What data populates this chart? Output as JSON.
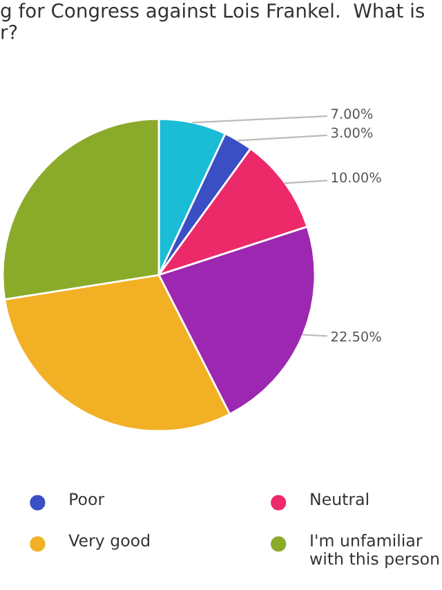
{
  "chart_data": {
    "type": "pie",
    "title": "g for Congress against Lois Frankel.  What is\nr?",
    "categories": [
      null,
      "Poor",
      "Neutral",
      null,
      "Very good",
      "I'm unfamiliar with this person"
    ],
    "values": [
      7,
      3,
      10,
      22.5,
      30,
      27.5
    ],
    "value_labels": [
      "7.00%",
      "3.00%",
      "10.00%",
      "22.50%",
      null,
      null
    ],
    "colors": [
      "#1bbcd6",
      "#3a4fc4",
      "#ec2a6a",
      "#9c27b0",
      "#f2b024",
      "#8aab2a"
    ],
    "legend": "bottom"
  }
}
